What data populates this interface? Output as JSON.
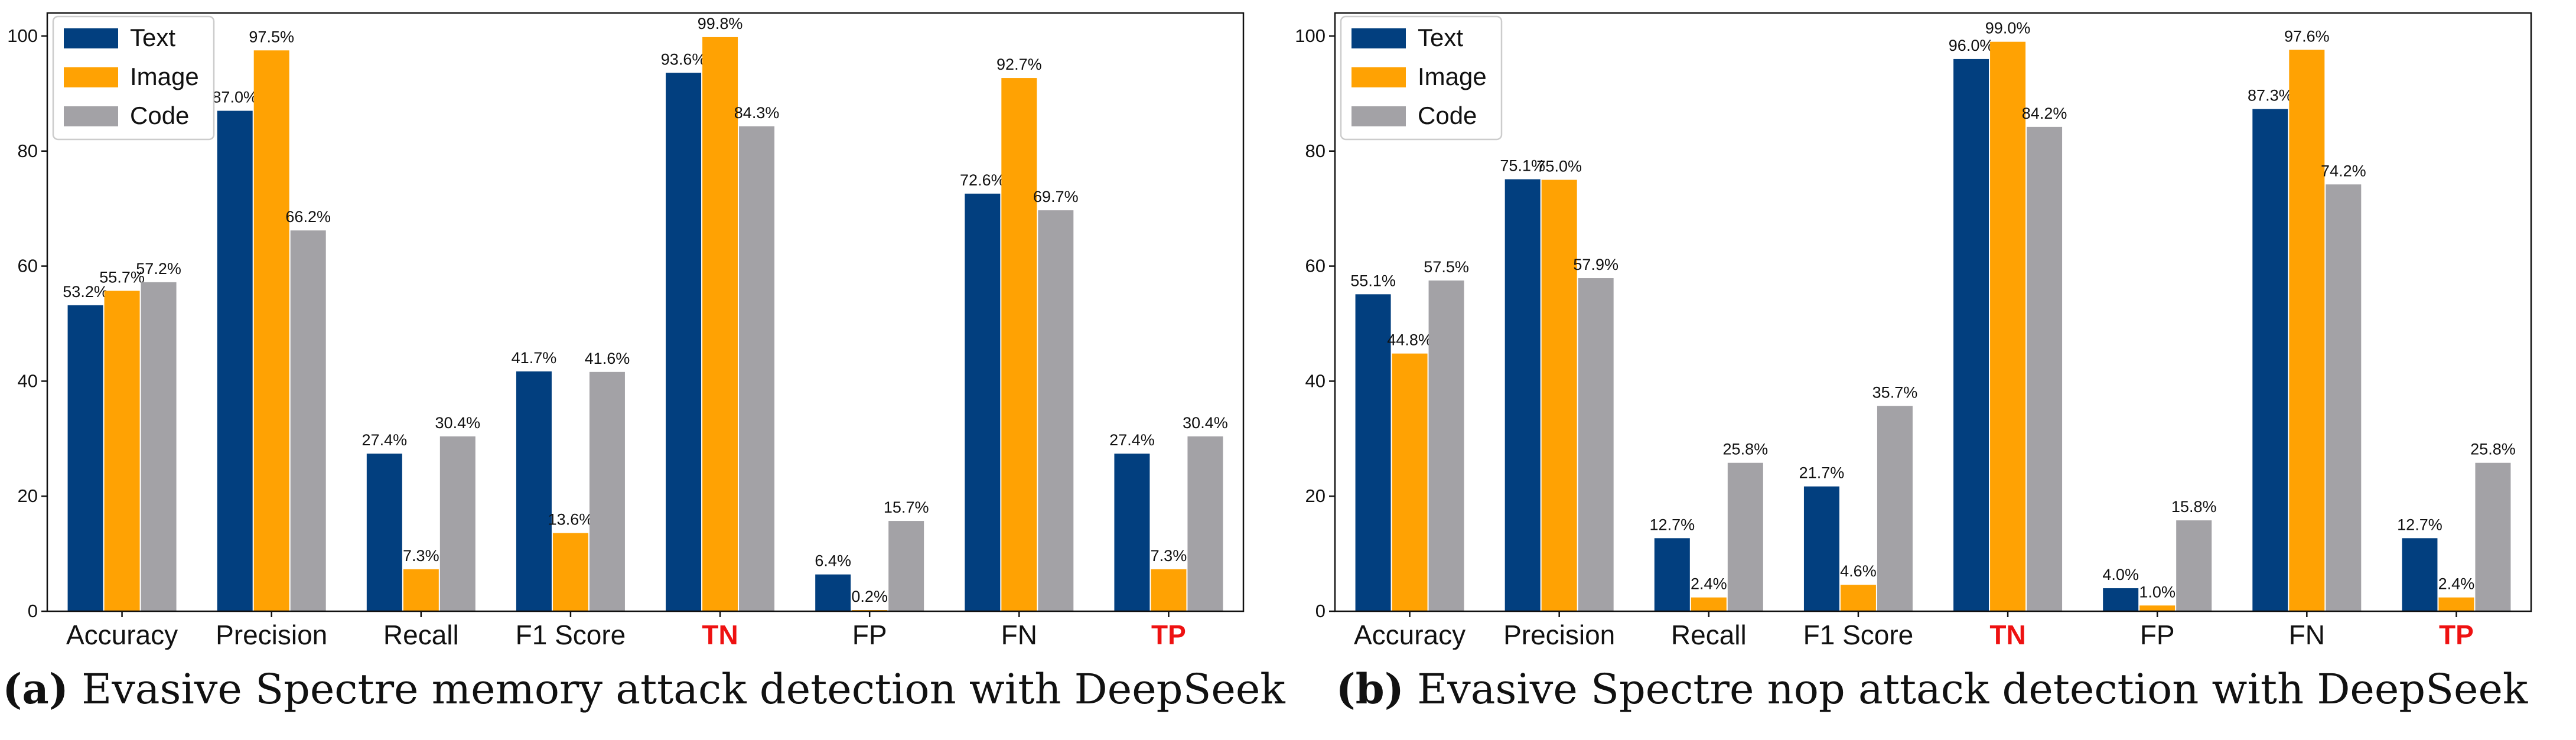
{
  "colors": {
    "Text": "#023f7f",
    "Image": "#ffa203",
    "Code": "#a3a2a6",
    "highlight": "#ee1111"
  },
  "chart_data": [
    {
      "type": "bar",
      "categories": [
        "Accuracy",
        "Precision",
        "Recall",
        "F1 Score",
        "TN",
        "FP",
        "FN",
        "TP"
      ],
      "highlighted_categories": [
        "TN",
        "TP"
      ],
      "series": [
        {
          "name": "Text",
          "values": [
            53.2,
            87.0,
            27.4,
            41.7,
            93.6,
            6.4,
            72.6,
            27.4
          ],
          "labels": [
            "53.2%",
            "87.0%",
            "27.4%",
            "41.7%",
            "93.6%",
            "6.4%",
            "72.6%",
            "27.4%"
          ]
        },
        {
          "name": "Image",
          "values": [
            55.7,
            97.5,
            7.3,
            13.6,
            99.8,
            0.2,
            92.7,
            7.3
          ],
          "labels": [
            "55.7%",
            "97.5%",
            "7.3%",
            "13.6%",
            "99.8%",
            "0.2%",
            "92.7%",
            "7.3%"
          ]
        },
        {
          "name": "Code",
          "values": [
            57.2,
            66.2,
            30.4,
            41.6,
            84.3,
            15.7,
            69.7,
            30.4
          ],
          "labels": [
            "57.2%",
            "66.2%",
            "30.4%",
            "41.6%",
            "84.3%",
            "15.7%",
            "69.7%",
            "30.4%"
          ]
        }
      ],
      "yticks": [
        0,
        20,
        40,
        60,
        80,
        100
      ],
      "ylim": [
        0,
        104
      ],
      "legend": "top-left",
      "grid": false,
      "caption_letter": "(a)",
      "caption_text": " Evasive Spectre memory attack detection with DeepSeek"
    },
    {
      "type": "bar",
      "categories": [
        "Accuracy",
        "Precision",
        "Recall",
        "F1 Score",
        "TN",
        "FP",
        "FN",
        "TP"
      ],
      "highlighted_categories": [
        "TN",
        "TP"
      ],
      "series": [
        {
          "name": "Text",
          "values": [
            55.1,
            75.1,
            12.7,
            21.7,
            96.0,
            4.0,
            87.3,
            12.7
          ],
          "labels": [
            "55.1%",
            "75.1%",
            "12.7%",
            "21.7%",
            "96.0%",
            "4.0%",
            "87.3%",
            "12.7%"
          ]
        },
        {
          "name": "Image",
          "values": [
            44.8,
            75.0,
            2.4,
            4.6,
            99.0,
            1.0,
            97.6,
            2.4
          ],
          "labels": [
            "44.8%",
            "75.0%",
            "2.4%",
            "4.6%",
            "99.0%",
            "1.0%",
            "97.6%",
            "2.4%"
          ]
        },
        {
          "name": "Code",
          "values": [
            57.5,
            57.9,
            25.8,
            35.7,
            84.2,
            15.8,
            74.2,
            25.8
          ],
          "labels": [
            "57.5%",
            "57.9%",
            "25.8%",
            "35.7%",
            "84.2%",
            "15.8%",
            "74.2%",
            "25.8%"
          ]
        }
      ],
      "yticks": [
        0,
        20,
        40,
        60,
        80,
        100
      ],
      "ylim": [
        0,
        104
      ],
      "legend": "top-left",
      "grid": false,
      "caption_letter": "(b)",
      "caption_text": " Evasive Spectre nop attack detection with DeepSeek"
    }
  ]
}
